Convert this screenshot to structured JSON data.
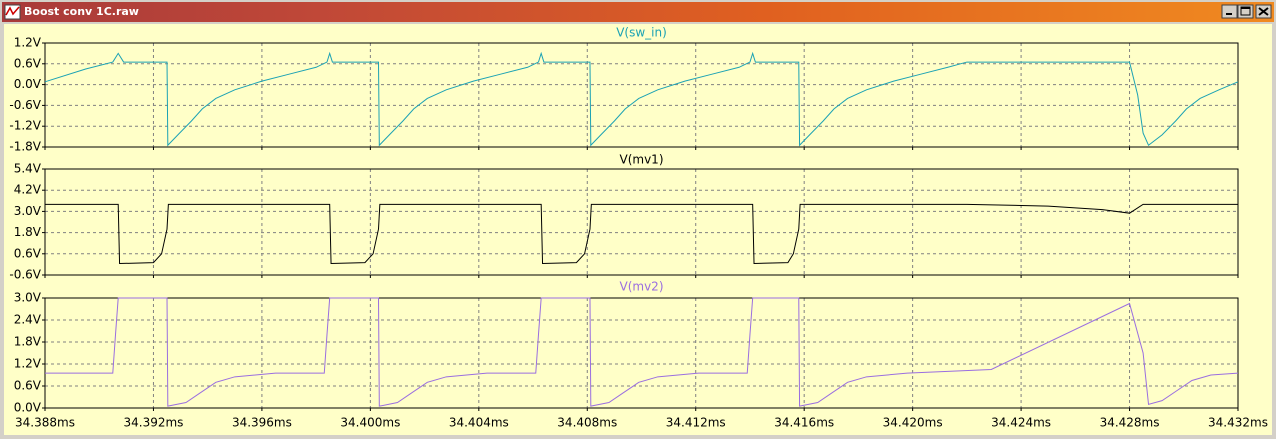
{
  "window": {
    "title": "Boost conv 1C.raw"
  },
  "chart_data": [
    {
      "type": "line",
      "title": "V(sw_in)",
      "color": "#1ba2b4",
      "x": [
        34.388,
        34.3895,
        34.3905,
        34.3907,
        34.3909,
        34.3925,
        34.39253,
        34.3929,
        34.3934,
        34.3938,
        34.3943,
        34.395,
        34.396,
        34.397,
        34.398,
        34.3984,
        34.3985,
        34.3986,
        34.4003,
        34.40033,
        34.4007,
        34.4012,
        34.4016,
        34.4021,
        34.4028,
        34.4038,
        34.4048,
        34.4058,
        34.4062,
        34.4063,
        34.4064,
        34.4081,
        34.40813,
        34.4085,
        34.409,
        34.4094,
        34.4099,
        34.4106,
        34.4116,
        34.4126,
        34.4136,
        34.414,
        34.4141,
        34.4142,
        34.4158,
        34.41583,
        34.4162,
        34.4167,
        34.4171,
        34.4176,
        34.4183,
        34.4193,
        34.4203,
        34.4213,
        34.422,
        34.428,
        34.4283,
        34.4285,
        34.4287,
        34.4292,
        34.4297,
        34.4301,
        34.4306,
        34.4313,
        34.432
      ],
      "values": [
        0.08,
        0.45,
        0.65,
        0.9,
        0.65,
        0.65,
        -1.75,
        -1.45,
        -1.05,
        -0.7,
        -0.4,
        -0.15,
        0.1,
        0.3,
        0.5,
        0.65,
        0.9,
        0.65,
        0.65,
        -1.75,
        -1.45,
        -1.05,
        -0.7,
        -0.4,
        -0.15,
        0.1,
        0.3,
        0.5,
        0.65,
        0.9,
        0.65,
        0.65,
        -1.75,
        -1.45,
        -1.05,
        -0.7,
        -0.4,
        -0.15,
        0.1,
        0.3,
        0.5,
        0.65,
        0.9,
        0.65,
        0.65,
        -1.75,
        -1.45,
        -1.05,
        -0.7,
        -0.4,
        -0.15,
        0.1,
        0.3,
        0.5,
        0.65,
        0.65,
        -0.3,
        -1.4,
        -1.75,
        -1.45,
        -1.05,
        -0.7,
        -0.4,
        -0.15,
        0.08
      ],
      "xlim": [
        34.388,
        34.432
      ],
      "xticks": [
        34.388,
        34.392,
        34.396,
        34.4,
        34.404,
        34.408,
        34.412,
        34.416,
        34.42,
        34.424,
        34.428,
        34.432
      ],
      "ylim": [
        -1.8,
        1.2
      ],
      "yticks": [
        {
          "value": -1.8,
          "label": "-1.8V"
        },
        {
          "value": -1.2,
          "label": "-1.2V"
        },
        {
          "value": -0.6,
          "label": "-0.6V"
        },
        {
          "value": 0,
          "label": "0.0V"
        },
        {
          "value": 0.6,
          "label": "0.6V"
        },
        {
          "value": 1.2,
          "label": "1.2V"
        }
      ],
      "grid": true
    },
    {
      "type": "line",
      "title": "V(mv1)",
      "color": "#000000",
      "x": [
        34.388,
        34.3907,
        34.39075,
        34.392,
        34.3923,
        34.3925,
        34.39255,
        34.3985,
        34.39855,
        34.3998,
        34.4001,
        34.4003,
        34.40035,
        34.4063,
        34.40635,
        34.4076,
        34.4079,
        34.4081,
        34.40815,
        34.4141,
        34.41415,
        34.4154,
        34.4156,
        34.4158,
        34.41585,
        34.422,
        34.425,
        34.427,
        34.428,
        34.4285,
        34.432
      ],
      "values": [
        3.4,
        3.4,
        0.05,
        0.1,
        0.6,
        2.0,
        3.4,
        3.4,
        0.05,
        0.1,
        0.6,
        2.0,
        3.4,
        3.4,
        0.05,
        0.1,
        0.6,
        2.0,
        3.4,
        3.4,
        0.05,
        0.1,
        0.6,
        2.0,
        3.4,
        3.4,
        3.3,
        3.1,
        2.9,
        3.4,
        3.4
      ],
      "xlim": [
        34.388,
        34.432
      ],
      "xticks": [
        34.388,
        34.392,
        34.396,
        34.4,
        34.404,
        34.408,
        34.412,
        34.416,
        34.42,
        34.424,
        34.428,
        34.432
      ],
      "ylim": [
        -0.6,
        5.4
      ],
      "yticks": [
        {
          "value": -0.6,
          "label": "-0.6V"
        },
        {
          "value": 0.6,
          "label": "0.6V"
        },
        {
          "value": 1.8,
          "label": "1.8V"
        },
        {
          "value": 3.0,
          "label": "3.0V"
        },
        {
          "value": 4.2,
          "label": "4.2V"
        },
        {
          "value": 5.4,
          "label": "5.4V"
        }
      ],
      "grid": true
    },
    {
      "type": "line",
      "title": "V(mv2)",
      "color": "#9a6ee0",
      "x": [
        34.388,
        34.3905,
        34.3906,
        34.3907,
        34.3925,
        34.39253,
        34.3932,
        34.3937,
        34.3943,
        34.395,
        34.3965,
        34.3983,
        34.3984,
        34.3985,
        34.4003,
        34.40033,
        34.401,
        34.4015,
        34.4021,
        34.4028,
        34.4043,
        34.4061,
        34.4062,
        34.4063,
        34.4081,
        34.40813,
        34.4088,
        34.4093,
        34.4099,
        34.4106,
        34.4121,
        34.4139,
        34.414,
        34.4141,
        34.4158,
        34.41583,
        34.4165,
        34.417,
        34.4176,
        34.4183,
        34.4198,
        34.4229,
        34.428,
        34.4285,
        34.4287,
        34.4292,
        34.4297,
        34.4303,
        34.431,
        34.432
      ],
      "values": [
        0.95,
        0.95,
        2.0,
        3.0,
        3.0,
        0.05,
        0.15,
        0.4,
        0.7,
        0.85,
        0.95,
        0.95,
        2.0,
        3.0,
        3.0,
        0.05,
        0.15,
        0.4,
        0.7,
        0.85,
        0.95,
        0.95,
        2.0,
        3.0,
        3.0,
        0.05,
        0.15,
        0.4,
        0.7,
        0.85,
        0.95,
        0.95,
        2.0,
        3.0,
        3.0,
        0.05,
        0.15,
        0.4,
        0.7,
        0.85,
        0.95,
        1.05,
        2.85,
        1.5,
        0.1,
        0.2,
        0.45,
        0.75,
        0.9,
        0.95
      ],
      "xlim": [
        34.388,
        34.432
      ],
      "xticks": [
        {
          "value": 34.388,
          "label": "34.388ms"
        },
        {
          "value": 34.392,
          "label": "34.392ms"
        },
        {
          "value": 34.396,
          "label": "34.396ms"
        },
        {
          "value": 34.4,
          "label": "34.400ms"
        },
        {
          "value": 34.404,
          "label": "34.404ms"
        },
        {
          "value": 34.408,
          "label": "34.408ms"
        },
        {
          "value": 34.412,
          "label": "34.412ms"
        },
        {
          "value": 34.416,
          "label": "34.416ms"
        },
        {
          "value": 34.42,
          "label": "34.420ms"
        },
        {
          "value": 34.424,
          "label": "34.424ms"
        },
        {
          "value": 34.428,
          "label": "34.428ms"
        },
        {
          "value": 34.432,
          "label": "34.432ms"
        }
      ],
      "ylim": [
        0,
        3.0
      ],
      "yticks": [
        {
          "value": 0,
          "label": "0.0V"
        },
        {
          "value": 0.6,
          "label": "0.6V"
        },
        {
          "value": 1.2,
          "label": "1.2V"
        },
        {
          "value": 1.8,
          "label": "1.8V"
        },
        {
          "value": 2.4,
          "label": "2.4V"
        },
        {
          "value": 3.0,
          "label": "3.0V"
        }
      ],
      "grid": true
    }
  ]
}
